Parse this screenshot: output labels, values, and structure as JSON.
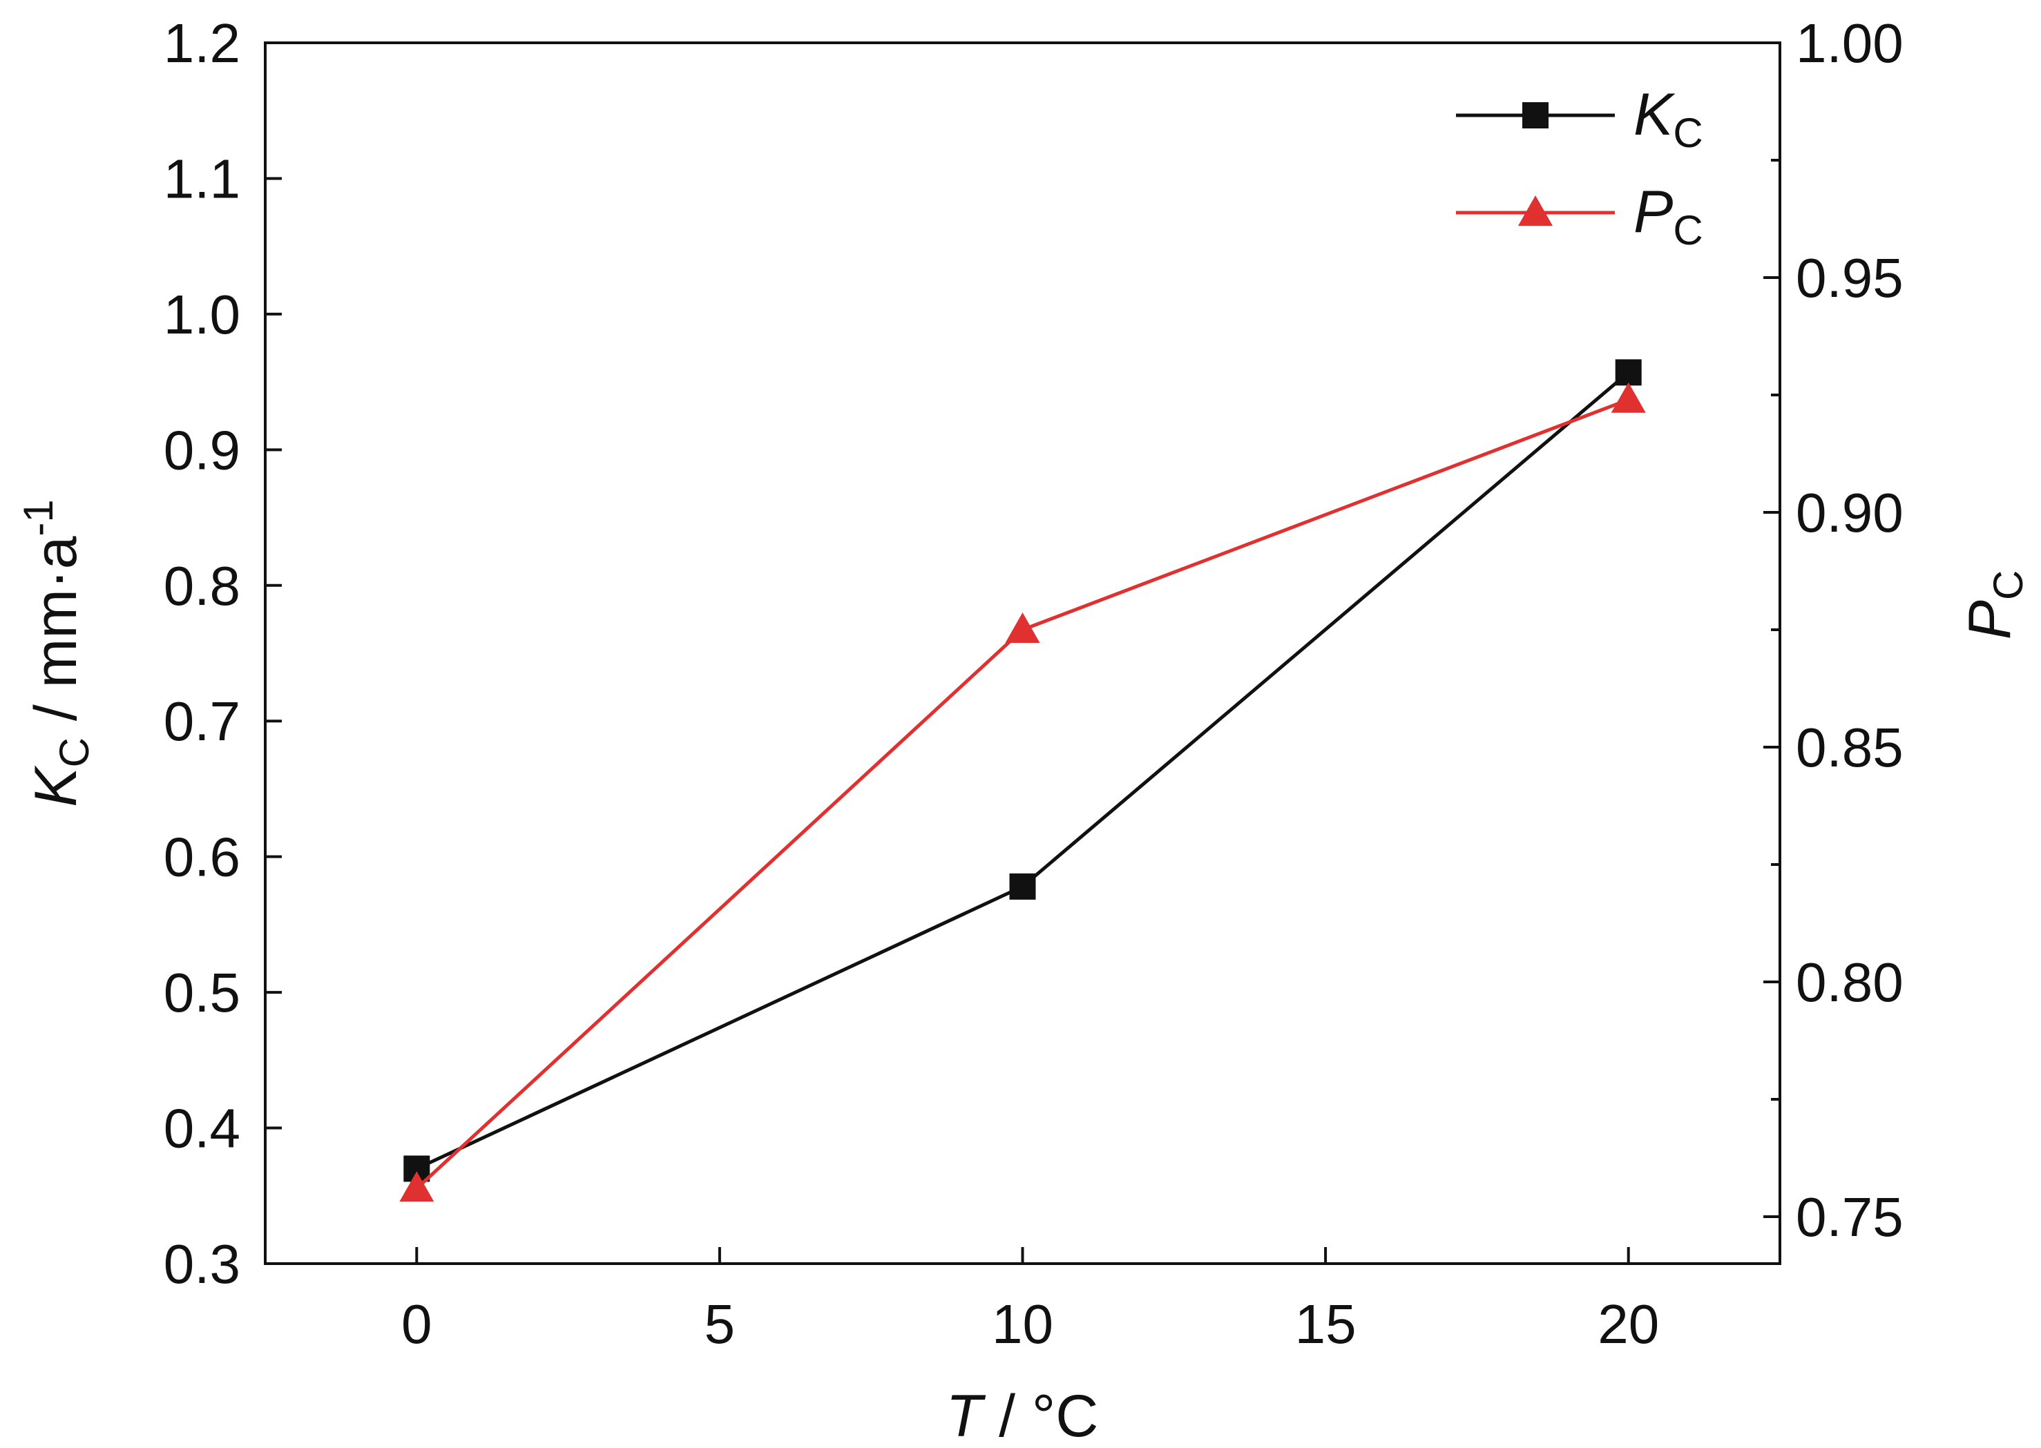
{
  "chart_data": {
    "type": "line",
    "x_axis": {
      "label_var": "T",
      "label_unit": " / °C",
      "range": [
        -2.5,
        22.5
      ],
      "ticks": [
        0,
        5,
        10,
        15,
        20
      ],
      "tick_labels": [
        "0",
        "5",
        "10",
        "15",
        "20"
      ]
    },
    "y_left": {
      "label_var": "K",
      "label_sub": "C",
      "label_unit": " / mm·a",
      "label_sup": "-1",
      "range": [
        0.3,
        1.2
      ],
      "ticks": [
        0.3,
        0.4,
        0.5,
        0.6,
        0.7,
        0.8,
        0.9,
        1.0,
        1.1,
        1.2
      ],
      "tick_labels": [
        "0.3",
        "0.4",
        "0.5",
        "0.6",
        "0.7",
        "0.8",
        "0.9",
        "1.0",
        "1.1",
        "1.2"
      ]
    },
    "y_right": {
      "label_var": "P",
      "label_sub": "C",
      "range": [
        0.74,
        1.0
      ],
      "ticks": [
        0.75,
        0.8,
        0.85,
        0.9,
        0.95,
        1.0
      ],
      "tick_labels": [
        "0.75",
        "0.80",
        "0.85",
        "0.90",
        "0.95",
        "1.00"
      ],
      "minor_ticks": [
        0.775,
        0.825,
        0.875,
        0.925,
        0.975
      ]
    },
    "series": [
      {
        "name_var": "K",
        "name_sub": "C",
        "axis": "left",
        "marker": "square",
        "color": "#111111",
        "x": [
          0,
          10,
          20
        ],
        "y": [
          0.37,
          0.578,
          0.957
        ]
      },
      {
        "name_var": "P",
        "name_sub": "C",
        "axis": "right",
        "marker": "triangle",
        "color": "#e03030",
        "x": [
          0,
          10,
          20
        ],
        "y": [
          0.756,
          0.875,
          0.924
        ]
      }
    ],
    "legend": {
      "position": "top-right"
    },
    "grid": false
  }
}
